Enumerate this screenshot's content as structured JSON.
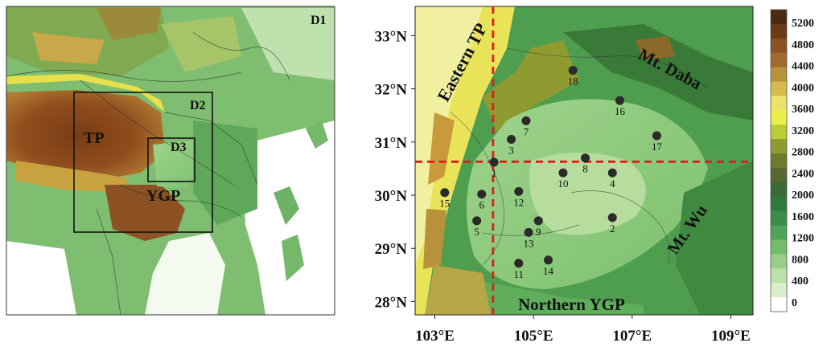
{
  "left_map": {
    "domain_labels": [
      "D1",
      "D2",
      "D3"
    ],
    "region_labels": [
      "TP",
      "YGP"
    ]
  },
  "right_map": {
    "y_tick_labels": [
      "33°N",
      "32°N",
      "31°N",
      "30°N",
      "29°N",
      "28°N"
    ],
    "x_tick_labels": [
      "103°E",
      "105°E",
      "107°E",
      "109°E"
    ],
    "region_labels": [
      "Eastern TP",
      "Mt. Daba",
      "Mt. Wu",
      "Northern YGP"
    ],
    "stations": [
      {
        "id": "1",
        "lon": 104.2,
        "lat": 30.62
      },
      {
        "id": "2",
        "lon": 106.6,
        "lat": 29.58
      },
      {
        "id": "3",
        "lon": 104.55,
        "lat": 31.05
      },
      {
        "id": "4",
        "lon": 106.6,
        "lat": 30.42
      },
      {
        "id": "5",
        "lon": 103.85,
        "lat": 29.52
      },
      {
        "id": "6",
        "lon": 103.95,
        "lat": 30.02
      },
      {
        "id": "7",
        "lon": 104.85,
        "lat": 31.4
      },
      {
        "id": "8",
        "lon": 106.05,
        "lat": 30.7
      },
      {
        "id": "9",
        "lon": 105.1,
        "lat": 29.52
      },
      {
        "id": "10",
        "lon": 105.6,
        "lat": 30.42
      },
      {
        "id": "11",
        "lon": 104.7,
        "lat": 28.72
      },
      {
        "id": "12",
        "lon": 104.7,
        "lat": 30.07
      },
      {
        "id": "13",
        "lon": 104.9,
        "lat": 29.3
      },
      {
        "id": "14",
        "lon": 105.3,
        "lat": 28.78
      },
      {
        "id": "15",
        "lon": 103.2,
        "lat": 30.05
      },
      {
        "id": "16",
        "lon": 106.75,
        "lat": 31.78
      },
      {
        "id": "17",
        "lon": 107.5,
        "lat": 31.12
      },
      {
        "id": "18",
        "lon": 105.8,
        "lat": 32.35
      }
    ],
    "crosshair": {
      "lon": 104.18,
      "lat": 30.63
    }
  },
  "colorbar": {
    "tick_labels": [
      "5200",
      "4800",
      "4400",
      "4000",
      "3600",
      "3200",
      "2800",
      "2400",
      "2000",
      "1600",
      "1200",
      "800",
      "400",
      "0"
    ],
    "colors": [
      "#4a2a10",
      "#6b3a16",
      "#8c5224",
      "#a06a2c",
      "#b8923a",
      "#d7bb4e",
      "#ece36a",
      "#e9f04a",
      "#bccb36",
      "#8f9b30",
      "#6f7a2c",
      "#556930",
      "#3a6a36",
      "#2e7a3e",
      "#3a8f48",
      "#4ea458",
      "#72bc6a",
      "#98cf86",
      "#bde2a8",
      "#dbefcf",
      "#ffffff"
    ]
  }
}
